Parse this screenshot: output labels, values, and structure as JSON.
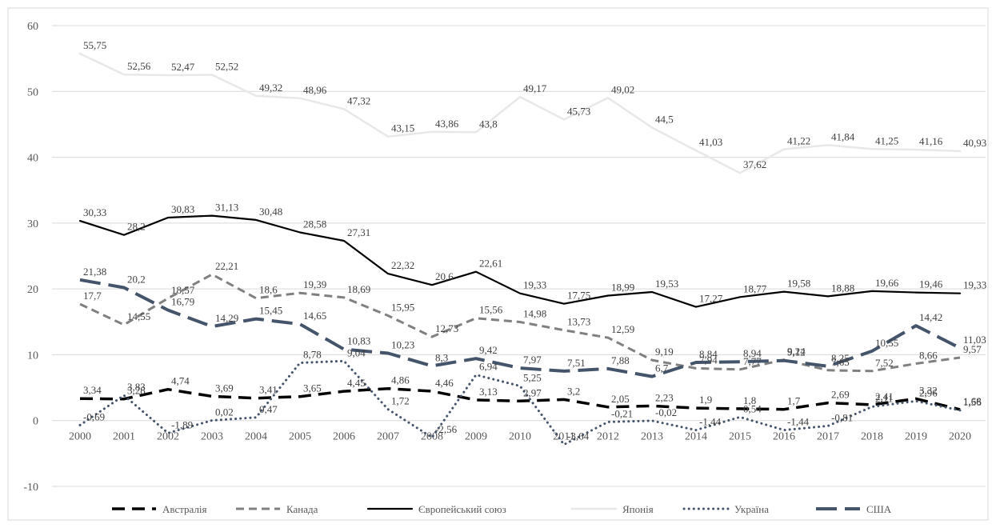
{
  "chart_data": {
    "type": "line",
    "title": "",
    "xlabel": "",
    "ylabel": "",
    "ylim": [
      -10,
      60
    ],
    "yticks": [
      "-10",
      "0",
      "10",
      "20",
      "30",
      "40",
      "50",
      "60"
    ],
    "categories": [
      "2000",
      "2001",
      "2002",
      "2003",
      "2004",
      "2005",
      "2006",
      "2007",
      "2008",
      "2009",
      "2010",
      "2011",
      "2012",
      "2013",
      "2014",
      "2015",
      "2016",
      "2017",
      "2018",
      "2019",
      "2020"
    ],
    "grid": "horizontal",
    "legend_position": "bottom",
    "series": [
      {
        "name": "Австралія",
        "color": "#000000",
        "style": "long-dash",
        "values": [
          3.34,
          3.28,
          4.74,
          3.69,
          3.41,
          3.65,
          4.45,
          4.86,
          4.46,
          3.13,
          2.97,
          3.2,
          2.05,
          2.23,
          1.9,
          1.8,
          1.7,
          2.69,
          2.41,
          3.32,
          1.68
        ],
        "labels": [
          "3,34",
          "3,28",
          "4,74",
          "3,69",
          "3,41",
          "3,65",
          "4,45",
          "4,86",
          "4,46",
          "3,13",
          "2,97",
          "3,2",
          "2,05",
          "2,23",
          "1,9",
          "1,8",
          "1,7",
          "2,69",
          "2,41",
          "3,32",
          "1,68"
        ]
      },
      {
        "name": "Канада",
        "color": "#808080",
        "style": "dash",
        "values": [
          17.7,
          14.55,
          18.57,
          22.21,
          18.6,
          19.39,
          18.69,
          15.95,
          12.73,
          15.56,
          14.98,
          13.73,
          12.59,
          9.19,
          7.94,
          7.77,
          9.24,
          7.65,
          7.52,
          8.66,
          9.57
        ],
        "labels": [
          "17,7",
          "14,55",
          "18,57",
          "22,21",
          "18,6",
          "19,39",
          "18,69",
          "15,95",
          "12,73",
          "15,56",
          "14,98",
          "13,73",
          "12,59",
          "9,19",
          "7,94",
          "7,77",
          "9,24",
          "7,65",
          "7,52",
          "8,66",
          "9,57"
        ]
      },
      {
        "name": "Європейський союз",
        "color": "#000000",
        "style": "solid",
        "values": [
          30.33,
          28.2,
          30.83,
          31.13,
          30.48,
          28.58,
          27.31,
          22.32,
          20.6,
          22.61,
          19.33,
          17.75,
          18.99,
          19.53,
          17.27,
          18.77,
          19.58,
          18.88,
          19.66,
          19.46,
          19.33
        ],
        "labels": [
          "30,33",
          "28,2",
          "30,83",
          "31,13",
          "30,48",
          "28,58",
          "27,31",
          "22,32",
          "20,6",
          "22,61",
          "19,33",
          "17,75",
          "18,99",
          "19,53",
          "17,27",
          "18,77",
          "19,58",
          "18,88",
          "19,66",
          "19,46",
          "19,33"
        ]
      },
      {
        "name": "Японія",
        "color": "#e8e8e8",
        "style": "solid",
        "values": [
          55.75,
          52.56,
          52.47,
          52.52,
          49.32,
          48.96,
          47.32,
          43.15,
          43.86,
          43.8,
          49.17,
          45.73,
          49.02,
          44.5,
          41.03,
          37.62,
          41.22,
          41.84,
          41.25,
          41.16,
          40.93
        ],
        "labels": [
          "55,75",
          "52,56",
          "52,47",
          "52,52",
          "49,32",
          "48,96",
          "47,32",
          "43,15",
          "43,86",
          "43,8",
          "49,17",
          "45,73",
          "49,02",
          "44,5",
          "41,03",
          "37,62",
          "41,22",
          "41,84",
          "41,25",
          "41,16",
          "40,93"
        ]
      },
      {
        "name": "Україна",
        "color": "#44546a",
        "style": "dot",
        "values": [
          -0.69,
          3.83,
          -1.89,
          0.02,
          0.47,
          8.78,
          9.04,
          1.72,
          -2.56,
          6.94,
          5.25,
          -3.64,
          -0.21,
          -0.02,
          -1.44,
          0.54,
          -1.44,
          -0.81,
          2.11,
          2.96,
          1.56
        ],
        "labels": [
          "-0,69",
          "3,83",
          "-1,89",
          "0,02",
          "0,47",
          "8,78",
          "9,04",
          "1,72",
          "-2,56",
          "6,94",
          "5,25",
          "-3,64",
          "-0,21",
          "-0,02",
          "-1,44",
          "0,54",
          "-1,44",
          "-0,81",
          "2,11",
          "2,96",
          "1,56"
        ]
      },
      {
        "name": "США",
        "color": "#44546a",
        "style": "long-dash-thick",
        "values": [
          21.38,
          20.2,
          16.79,
          14.29,
          15.45,
          14.65,
          10.83,
          10.23,
          8.3,
          9.42,
          7.97,
          7.51,
          7.88,
          6.7,
          8.84,
          8.94,
          9.12,
          8.25,
          10.55,
          14.42,
          11.03
        ],
        "labels": [
          "21,38",
          "20,2",
          "16,79",
          "14,29",
          "15,45",
          "14,65",
          "10,83",
          "10,23",
          "8,3",
          "9,42",
          "7,97",
          "7,51",
          "7,88",
          "6,7",
          "8,84",
          "8,94",
          "9,12",
          "8,25",
          "10,55",
          "14,42",
          "11,03"
        ]
      }
    ]
  }
}
